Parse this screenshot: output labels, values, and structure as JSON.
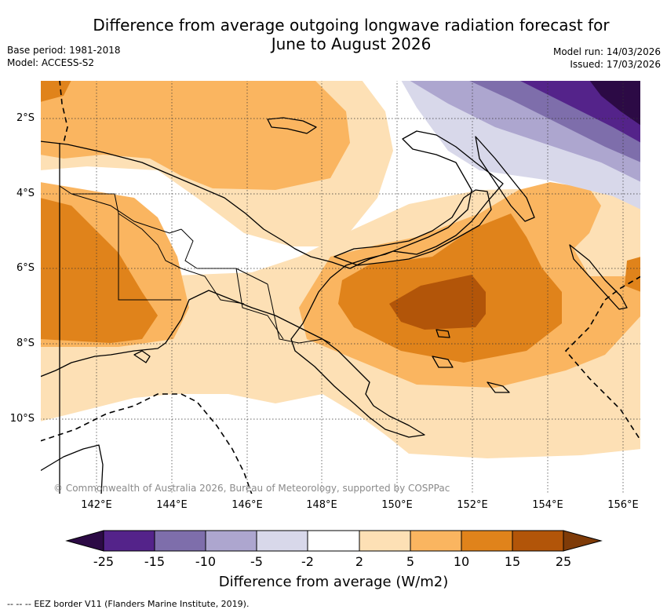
{
  "header": {
    "title_line1": "Difference from average outgoing longwave radiation forecast for",
    "title_line2": "June to August 2026",
    "base_period": "Base period: 1981-2018",
    "model": "Model: ACCESS-S2",
    "model_run": "Model run: 14/03/2026",
    "issued": "Issued: 17/03/2026"
  },
  "map": {
    "latitude_labels": [
      "2°S",
      "4°S",
      "6°S",
      "8°S",
      "10°S"
    ],
    "longitude_labels": [
      "142°E",
      "144°E",
      "146°E",
      "148°E",
      "150°E",
      "152°E",
      "154°E",
      "156°E"
    ],
    "copyright": "© Commonwealth of Australia 2026, Bureau of Meteorology, supported by COSPPac"
  },
  "colorbar": {
    "label": "Difference from average (W/m2)",
    "ticks": [
      "-25",
      "-15",
      "-10",
      "-5",
      "-2",
      "2",
      "5",
      "10",
      "15",
      "25"
    ],
    "colors": {
      "below_-25": "#2c0a45",
      "-25_-15": "#54238a",
      "-15_-10": "#7e6eab",
      "-10_-5": "#ada6cf",
      "-5_-2": "#d8d8ea",
      "-2_2": "#ffffff",
      "2_5": "#fde0b5",
      "5_10": "#fab560",
      "10_15": "#e0831b",
      "15_25": "#b25509",
      "above_25": "#7f3b08"
    }
  },
  "footer": {
    "eez_legend_marker": "--  --  --",
    "eez_legend_text": "EEZ border V11 (Flanders Marine Institute, 2019)."
  }
}
